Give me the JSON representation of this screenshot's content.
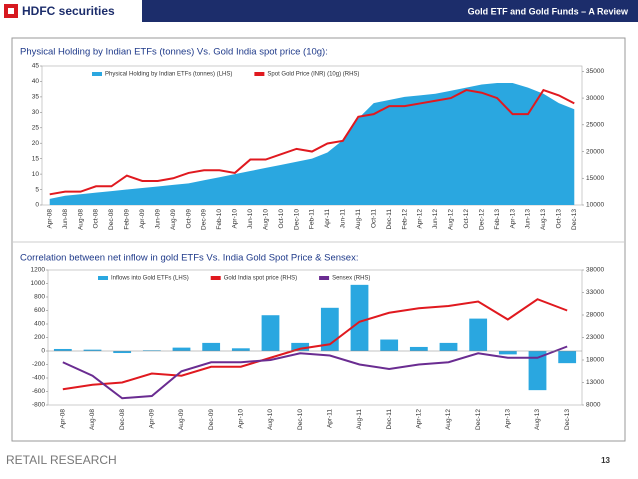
{
  "header": {
    "logo": "HDFC securities",
    "title": "Gold ETF and Gold Funds – A Review"
  },
  "footer": {
    "label": "RETAIL RESEARCH",
    "page": "13"
  },
  "chart_data": [
    {
      "type": "combo",
      "title": "Physical Holding by Indian ETFs (tonnes) Vs. Gold India spot price (10g):",
      "categories": [
        "Apr-08",
        "Jun-08",
        "Aug-08",
        "Oct-08",
        "Dec-08",
        "Feb-09",
        "Apr-09",
        "Jun-09",
        "Aug-09",
        "Oct-09",
        "Dec-09",
        "Feb-10",
        "Apr-10",
        "Jun-10",
        "Aug-10",
        "Oct-10",
        "Dec-10",
        "Feb-11",
        "Apr-11",
        "Jun-11",
        "Aug-11",
        "Oct-11",
        "Dec-11",
        "Feb-12",
        "Apr-12",
        "Jun-12",
        "Aug-12",
        "Oct-12",
        "Dec-12",
        "Feb-13",
        "Apr-13",
        "Jun-13",
        "Aug-13",
        "Oct-13",
        "Dec-13"
      ],
      "series": [
        {
          "name": "Physical Holding by Indian ETFs (tonnes) (LHS)",
          "type": "area",
          "color": "#2aa7e0",
          "axis": "y",
          "values": [
            2,
            3,
            3.5,
            4,
            4.5,
            5,
            5.5,
            6,
            6.5,
            7,
            8,
            9,
            10,
            11,
            12,
            13,
            14,
            15,
            17,
            21,
            28,
            33,
            34,
            35,
            35.5,
            36,
            37,
            38,
            39,
            39.5,
            39.5,
            38,
            36,
            33,
            31
          ]
        },
        {
          "name": "Spot Gold Price (INR) (10g) (RHS)",
          "type": "line",
          "color": "#e0191f",
          "axis": "y2",
          "values": [
            12000,
            12500,
            12500,
            13500,
            13500,
            15500,
            14500,
            14500,
            15000,
            16000,
            16500,
            16500,
            16000,
            18500,
            18500,
            19500,
            20500,
            20000,
            21500,
            22000,
            26500,
            27000,
            28500,
            28500,
            29000,
            29500,
            30000,
            31500,
            31000,
            30000,
            27000,
            27000,
            31500,
            30500,
            29000
          ]
        }
      ],
      "ylim": [
        0,
        45
      ],
      "yticks": [
        0,
        5,
        10,
        15,
        20,
        25,
        30,
        35,
        40,
        45
      ],
      "y2lim": [
        10000,
        36000
      ],
      "y2ticks": [
        10000,
        15000,
        20000,
        25000,
        30000,
        35000
      ],
      "grid": false
    },
    {
      "type": "combo",
      "title": "Correlation between net inflow in gold ETFs Vs. India Gold Spot Price & Sensex:",
      "categories": [
        "Apr-08",
        "Aug-08",
        "Dec-08",
        "Apr-09",
        "Aug-09",
        "Dec-09",
        "Apr-10",
        "Aug-10",
        "Dec-10",
        "Apr-11",
        "Aug-11",
        "Dec-11",
        "Apr-12",
        "Aug-12",
        "Dec-12",
        "Apr-13",
        "Aug-13",
        "Dec-13"
      ],
      "series": [
        {
          "name": "Inflows into Gold ETFs (LHS)",
          "type": "bar",
          "color": "#2aa7e0",
          "axis": "y",
          "values": [
            30,
            20,
            -30,
            10,
            50,
            120,
            40,
            530,
            120,
            640,
            980,
            170,
            60,
            120,
            480,
            -50,
            -580,
            -180
          ]
        },
        {
          "name": "Gold India spot price (RHS)",
          "type": "line",
          "color": "#e0191f",
          "axis": "y2",
          "values": [
            11500,
            12500,
            13000,
            15000,
            14500,
            16500,
            16500,
            18500,
            20500,
            21500,
            26500,
            28500,
            29500,
            30000,
            31000,
            27000,
            31500,
            29000
          ]
        },
        {
          "name": "Sensex (RHS)",
          "type": "line",
          "color": "#6a2c91",
          "axis": "y2",
          "values": [
            17500,
            14500,
            9500,
            10000,
            15500,
            17500,
            17500,
            18000,
            19500,
            19000,
            17000,
            16000,
            17000,
            17500,
            19500,
            18500,
            18500,
            21000
          ]
        }
      ],
      "ylim": [
        -800,
        1200
      ],
      "yticks": [
        -800,
        -600,
        -400,
        -200,
        0,
        200,
        400,
        600,
        800,
        1000,
        1200
      ],
      "y2lim": [
        8000,
        38000
      ],
      "y2ticks": [
        8000,
        13000,
        18000,
        23000,
        28000,
        33000,
        38000
      ],
      "grid": false
    }
  ]
}
